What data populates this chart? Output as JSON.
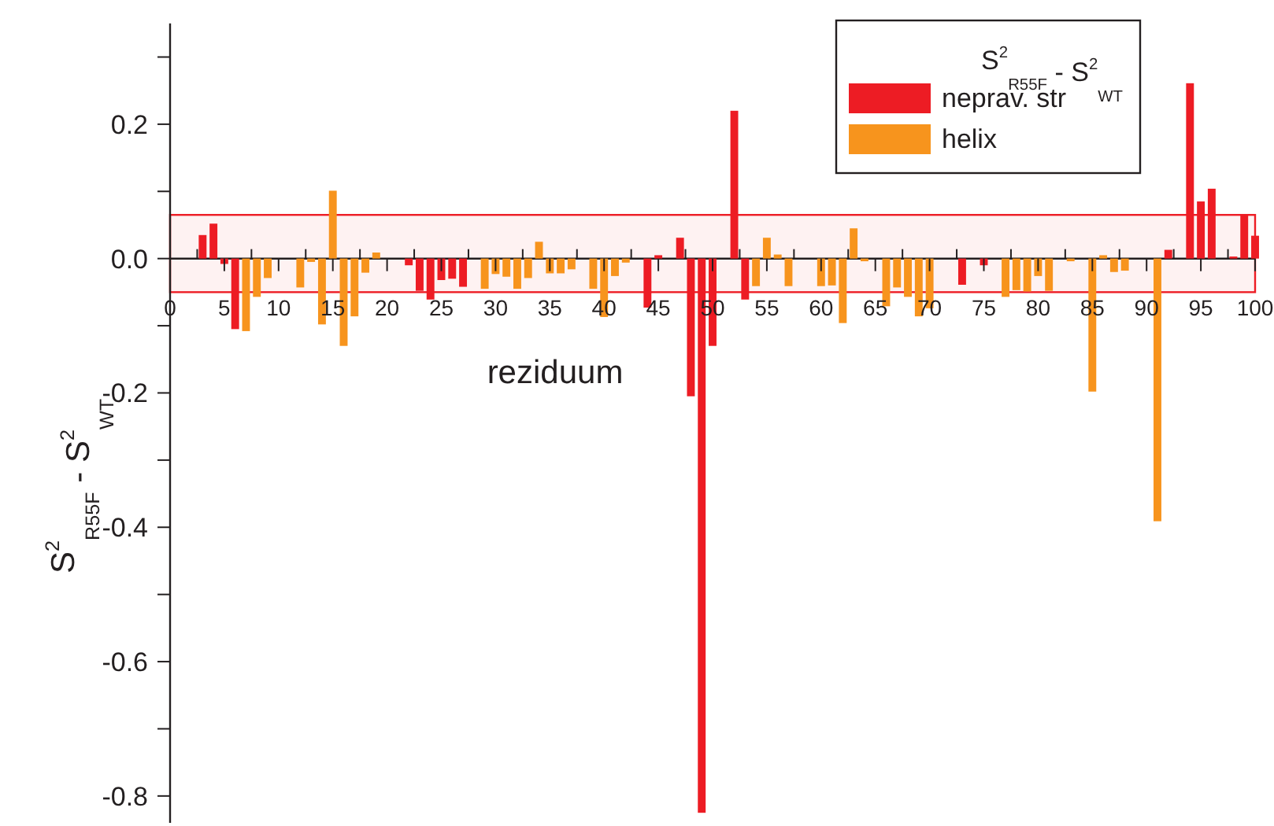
{
  "chart_data": {
    "type": "bar",
    "xlabel": "reziduum",
    "ylabel": "S$^{2}$$_{R55F}$ - S$^{2}$$_{WT}$",
    "legend_title": "S$^{2}$$_{R55F}$ - S$^{2}$$_{WT}$",
    "legend": "top right",
    "xlim": [
      0,
      100
    ],
    "xticks": [
      0,
      {
        "value": 2.5,
        "label": null
      },
      5,
      {
        "value": 7.5,
        "label": null
      },
      10,
      {
        "value": 12.5,
        "label": null
      },
      15,
      {
        "value": 17.5,
        "label": null
      },
      20,
      {
        "value": 22.5,
        "label": null
      },
      25,
      {
        "value": 27.5,
        "label": null
      },
      30,
      {
        "value": 32.5,
        "label": null
      },
      35,
      {
        "value": 37.5,
        "label": null
      },
      40,
      {
        "value": 42.5,
        "label": null
      },
      45,
      {
        "value": 47.5,
        "label": null
      },
      50,
      {
        "value": 52.5,
        "label": null
      },
      55,
      {
        "value": 57.5,
        "label": null
      },
      60,
      {
        "value": 62.5,
        "label": null
      },
      65,
      {
        "value": 67.5,
        "label": null
      },
      70,
      {
        "value": 72.5,
        "label": null
      },
      75,
      {
        "value": 77.5,
        "label": null
      },
      80,
      {
        "value": 82.5,
        "label": null
      },
      85,
      {
        "value": 87.5,
        "label": null
      },
      90,
      {
        "value": 92.5,
        "label": null
      },
      95,
      {
        "value": 97.5,
        "label": null
      },
      100
    ],
    "ylim": [
      -0.84,
      0.35
    ],
    "yticks": [
      {
        "value": 0.3,
        "label": null
      },
      {
        "value": 0.2,
        "label": "0.2"
      },
      {
        "value": 0.1,
        "label": null
      },
      {
        "value": 0,
        "label": "0.0"
      },
      {
        "value": -0.1,
        "label": null
      },
      {
        "value": -0.2,
        "label": "-0.2"
      },
      {
        "value": -0.3,
        "label": null
      },
      {
        "value": -0.4,
        "label": "-0.4"
      },
      {
        "value": -0.5,
        "label": null
      },
      {
        "value": -0.6,
        "label": "-0.6"
      },
      {
        "value": -0.7,
        "label": null
      },
      {
        "value": -0.8,
        "label": "-0.8"
      }
    ],
    "bands": [
      {
        "axis": "y",
        "from": -0.05,
        "to": 0.065,
        "color": "#ed1c24"
      }
    ],
    "series": [
      {
        "name": "neprav. str",
        "color": "#ed1c24",
        "x": [
          3,
          4,
          5,
          6,
          22,
          23,
          24,
          25,
          26,
          27,
          44,
          45,
          47,
          48,
          49,
          50,
          52,
          53,
          73,
          75,
          92,
          94,
          95,
          96,
          98,
          99,
          100
        ],
        "values": [
          0.035,
          0.052,
          -0.008,
          -0.105,
          -0.01,
          -0.048,
          -0.061,
          -0.032,
          -0.03,
          -0.042,
          -0.073,
          0.005,
          0.031,
          -0.205,
          -0.825,
          -0.13,
          0.22,
          -0.061,
          -0.039,
          -0.01,
          0.013,
          0.261,
          0.085,
          0.104,
          0.003,
          0.065,
          0.034
        ]
      },
      {
        "name": "helix",
        "color": "#f7941d",
        "x": [
          7,
          8,
          9,
          12,
          13,
          14,
          15,
          16,
          17,
          18,
          19,
          29,
          30,
          31,
          32,
          33,
          34,
          35,
          36,
          37,
          39,
          40,
          41,
          42,
          54,
          55,
          56,
          57,
          60,
          61,
          62,
          63,
          64,
          66,
          67,
          68,
          69,
          70,
          77,
          78,
          79,
          80,
          81,
          83,
          85,
          86,
          87,
          88,
          91
        ],
        "values": [
          -0.108,
          -0.057,
          -0.029,
          -0.043,
          -0.005,
          -0.098,
          0.101,
          -0.13,
          -0.086,
          -0.021,
          0.009,
          -0.045,
          -0.023,
          -0.027,
          -0.045,
          -0.029,
          0.025,
          -0.022,
          -0.022,
          -0.016,
          -0.045,
          -0.087,
          -0.026,
          -0.006,
          -0.041,
          0.031,
          0.006,
          -0.041,
          -0.041,
          -0.04,
          -0.096,
          0.045,
          -0.004,
          -0.071,
          -0.043,
          -0.057,
          -0.086,
          -0.074,
          -0.057,
          -0.047,
          -0.049,
          -0.026,
          -0.048,
          -0.004,
          -0.198,
          0.005,
          -0.02,
          -0.018,
          -0.391
        ]
      }
    ]
  }
}
